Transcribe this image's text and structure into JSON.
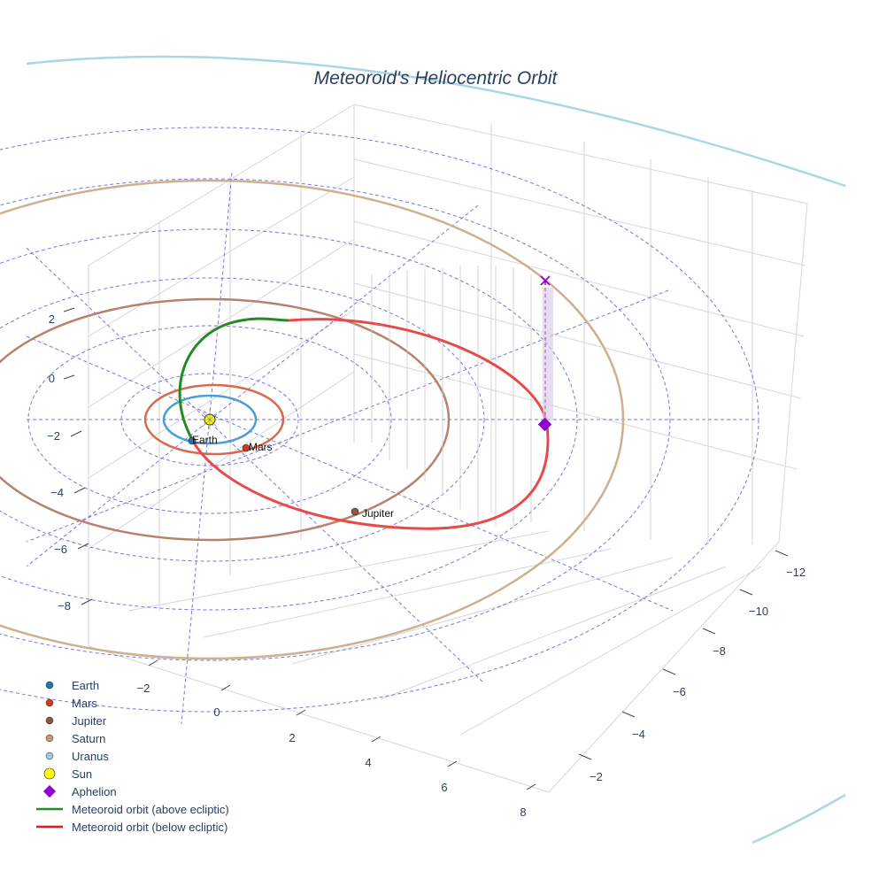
{
  "chart_data": {
    "type": "3d-orbit",
    "title": "Meteoroid's Heliocentric Orbit",
    "axes": {
      "x_ticks": [
        "−2",
        "0",
        "2",
        "4",
        "6",
        "8"
      ],
      "y_ticks": [
        "−12",
        "−10",
        "−8",
        "−6",
        "−4",
        "−2"
      ],
      "z_ticks": [
        "2",
        "0",
        "−2",
        "−4",
        "−6",
        "−8"
      ]
    },
    "grid": true,
    "legend_placement": "bottom-left",
    "planets": [
      {
        "name": "Earth",
        "semi_major_au": 1.0,
        "color": "#1f77b4",
        "label": "Earth"
      },
      {
        "name": "Mars",
        "semi_major_au": 1.52,
        "color": "#d62728",
        "label": "Mars"
      },
      {
        "name": "Jupiter",
        "semi_major_au": 5.2,
        "color": "#8c564b",
        "label": "Jupiter"
      },
      {
        "name": "Saturn",
        "semi_major_au": 9.54,
        "color": "#c49a6c",
        "label": ""
      },
      {
        "name": "Uranus",
        "semi_major_au": 19.2,
        "color": "#9ecae1",
        "label": ""
      }
    ],
    "sun": {
      "name": "Sun",
      "color": "#ffff00"
    },
    "aphelion": {
      "name": "Aphelion",
      "color": "#9400d3"
    },
    "meteoroid": {
      "above_name": "Meteoroid orbit (above ecliptic)",
      "above_color": "#228b22",
      "below_name": "Meteoroid orbit (below ecliptic)",
      "below_color": "#e41a1c"
    },
    "legend": [
      {
        "label": "Earth",
        "symbol": "circle",
        "color": "#1f77b4"
      },
      {
        "label": "Mars",
        "symbol": "circle",
        "color": "#d62728"
      },
      {
        "label": "Jupiter",
        "symbol": "circle",
        "color": "#8c564b"
      },
      {
        "label": "Saturn",
        "symbol": "circle",
        "color": "#c49a6c"
      },
      {
        "label": "Uranus",
        "symbol": "circle",
        "color": "#9ecae1"
      },
      {
        "label": "Sun",
        "symbol": "circle-big",
        "color": "#ffff00"
      },
      {
        "label": "Aphelion",
        "symbol": "diamond",
        "color": "#9400d3"
      },
      {
        "label": "Meteoroid orbit (above ecliptic)",
        "symbol": "line",
        "color": "#228b22"
      },
      {
        "label": "Meteoroid orbit (below ecliptic)",
        "symbol": "line",
        "color": "#e41a1c"
      }
    ]
  }
}
